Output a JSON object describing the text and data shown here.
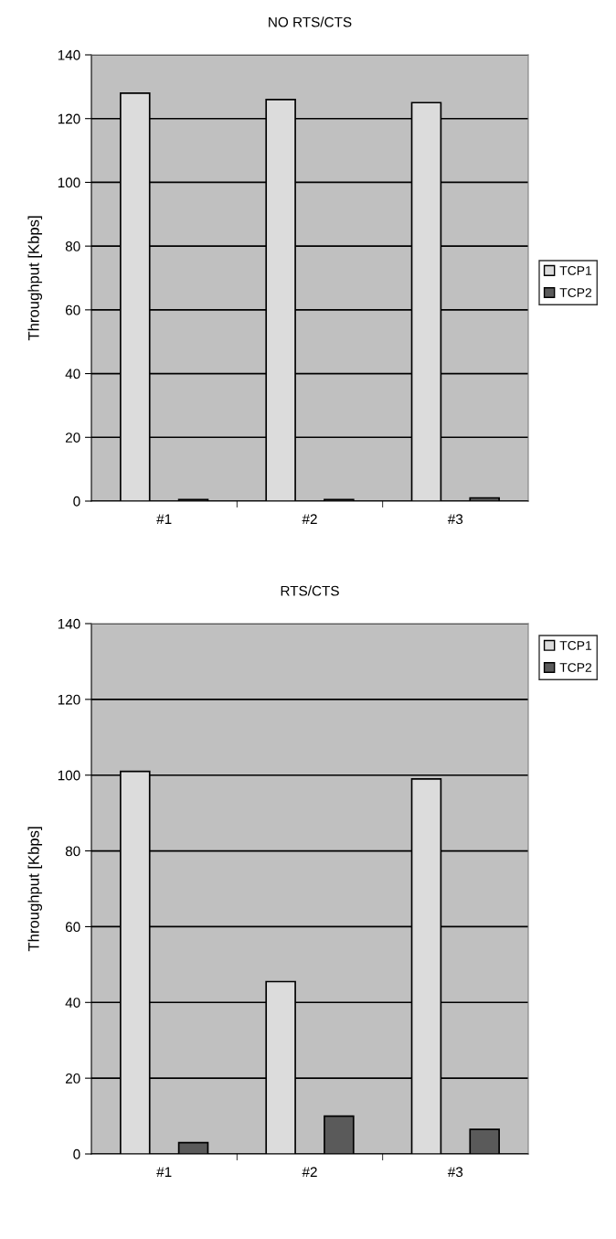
{
  "chart_data": [
    {
      "type": "bar",
      "title": "NO RTS/CTS",
      "ylabel": "Throughput [Kbps]",
      "categories": [
        "#1",
        "#2",
        "#3"
      ],
      "series": [
        {
          "name": "TCP1",
          "color": "#dcdcdc",
          "values": [
            128,
            126,
            125
          ]
        },
        {
          "name": "TCP2",
          "color": "#5a5a5a",
          "values": [
            0.5,
            0.5,
            1
          ]
        }
      ],
      "ylim": [
        0,
        140
      ],
      "yticks": [
        0,
        20,
        40,
        60,
        80,
        100,
        120,
        140
      ],
      "grid": "y",
      "legend": "right"
    },
    {
      "type": "bar",
      "title": "RTS/CTS",
      "ylabel": "Throughput [Kbps]",
      "categories": [
        "#1",
        "#2",
        "#3"
      ],
      "series": [
        {
          "name": "TCP1",
          "color": "#dcdcdc",
          "values": [
            101,
            45.5,
            99
          ]
        },
        {
          "name": "TCP2",
          "color": "#5a5a5a",
          "values": [
            3,
            10,
            6.5
          ]
        }
      ],
      "ylim": [
        0,
        140
      ],
      "yticks": [
        0,
        20,
        40,
        60,
        80,
        100,
        120,
        140
      ],
      "grid": "y",
      "legend": "right"
    }
  ]
}
